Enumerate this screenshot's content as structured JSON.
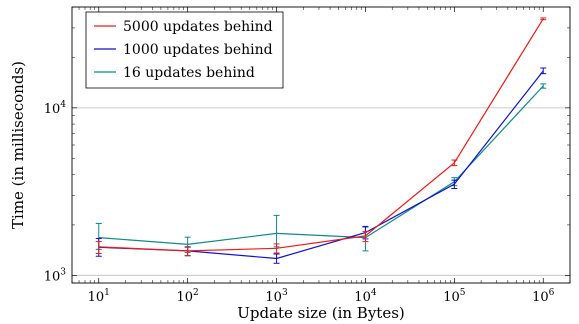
{
  "chart_data": {
    "type": "line",
    "x_scale": "log",
    "y_scale": "log",
    "xlabel": "Update size (in Bytes)",
    "ylabel": "Time (in milliseconds)",
    "xlim": [
      5,
      2000000
    ],
    "ylim": [
      900,
      40000
    ],
    "grid": "horizontal major lines at 10^3 and 10^4",
    "legend_position": "top-left",
    "x_ticks": [
      {
        "value": 10,
        "base": "10",
        "exp": "1"
      },
      {
        "value": 100,
        "base": "10",
        "exp": "2"
      },
      {
        "value": 1000,
        "base": "10",
        "exp": "3"
      },
      {
        "value": 10000,
        "base": "10",
        "exp": "4"
      },
      {
        "value": 100000,
        "base": "10",
        "exp": "5"
      },
      {
        "value": 1000000,
        "base": "10",
        "exp": "6"
      }
    ],
    "y_ticks": [
      {
        "value": 1000,
        "base": "10",
        "exp": "3"
      },
      {
        "value": 10000,
        "base": "10",
        "exp": "4"
      }
    ],
    "x": [
      10,
      100,
      1000,
      10000,
      100000,
      1000000
    ],
    "series": [
      {
        "name": "5000 updates behind",
        "color": "#ee1c1c",
        "values": [
          1480,
          1400,
          1450,
          1720,
          4700,
          34000
        ],
        "err_low": [
          1350,
          1310,
          1360,
          1590,
          4520,
          33600
        ],
        "err_high": [
          1590,
          1470,
          1540,
          1830,
          4880,
          34400
        ]
      },
      {
        "name": "1000 updates behind",
        "color": "#1010cc",
        "values": [
          1470,
          1400,
          1260,
          1800,
          3500,
          16600
        ],
        "err_low": [
          1300,
          1310,
          1180,
          1650,
          3300,
          16000
        ],
        "err_high": [
          1660,
          1480,
          1340,
          1960,
          3700,
          17300
        ]
      },
      {
        "name": "16 updates behind",
        "color": "#118888",
        "values": [
          1680,
          1530,
          1780,
          1680,
          3620,
          13500
        ],
        "err_low": [
          1430,
          1370,
          1480,
          1400,
          3430,
          13100
        ],
        "err_high": [
          2040,
          1690,
          2280,
          1940,
          3830,
          13900
        ]
      }
    ]
  }
}
